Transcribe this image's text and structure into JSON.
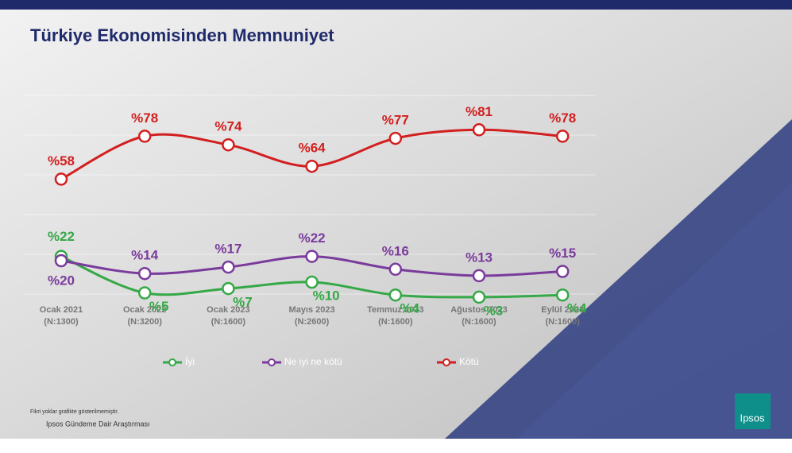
{
  "chart_data": {
    "type": "line",
    "title": "Türkiye Ekonomisinden Memnuniyet",
    "categories": [
      "Ocak 2021",
      "Ocak 2022",
      "Ocak 2023",
      "Mayıs 2023",
      "Temmuz 2023",
      "Ağustos 2023",
      "Eylül 2023"
    ],
    "category_notes": [
      "(N:1300)",
      "(N:3200)",
      "(N:1600)",
      "(N:2600)",
      "(N:1600)",
      "(N:1600)",
      "(N:1600)"
    ],
    "series": [
      {
        "name": "İyi",
        "color": "#35a847",
        "values": [
          22,
          5,
          7,
          10,
          4,
          3,
          4
        ],
        "value_labels": [
          "%22",
          "%5",
          "%7",
          "%10",
          "%4",
          "%3",
          "%4"
        ]
      },
      {
        "name": "Ne iyi ne kötü",
        "color": "#7a3b9c",
        "values": [
          20,
          14,
          17,
          22,
          16,
          13,
          15
        ],
        "value_labels": [
          "%20",
          "%14",
          "%17",
          "%22",
          "%16",
          "%13",
          "%15"
        ]
      },
      {
        "name": "Kötü",
        "color": "#d21f1f",
        "values": [
          58,
          78,
          74,
          64,
          77,
          81,
          78
        ],
        "value_labels": [
          "%58",
          "%78",
          "%74",
          "%64",
          "%77",
          "%81",
          "%78"
        ]
      }
    ],
    "ylim": [
      0,
      90
    ],
    "footnote": "Fikri yoklar grafikte gösterilmemiştir.",
    "source": "Ipsos Gündeme Dair Araştırması",
    "logo": "Ipsos"
  }
}
